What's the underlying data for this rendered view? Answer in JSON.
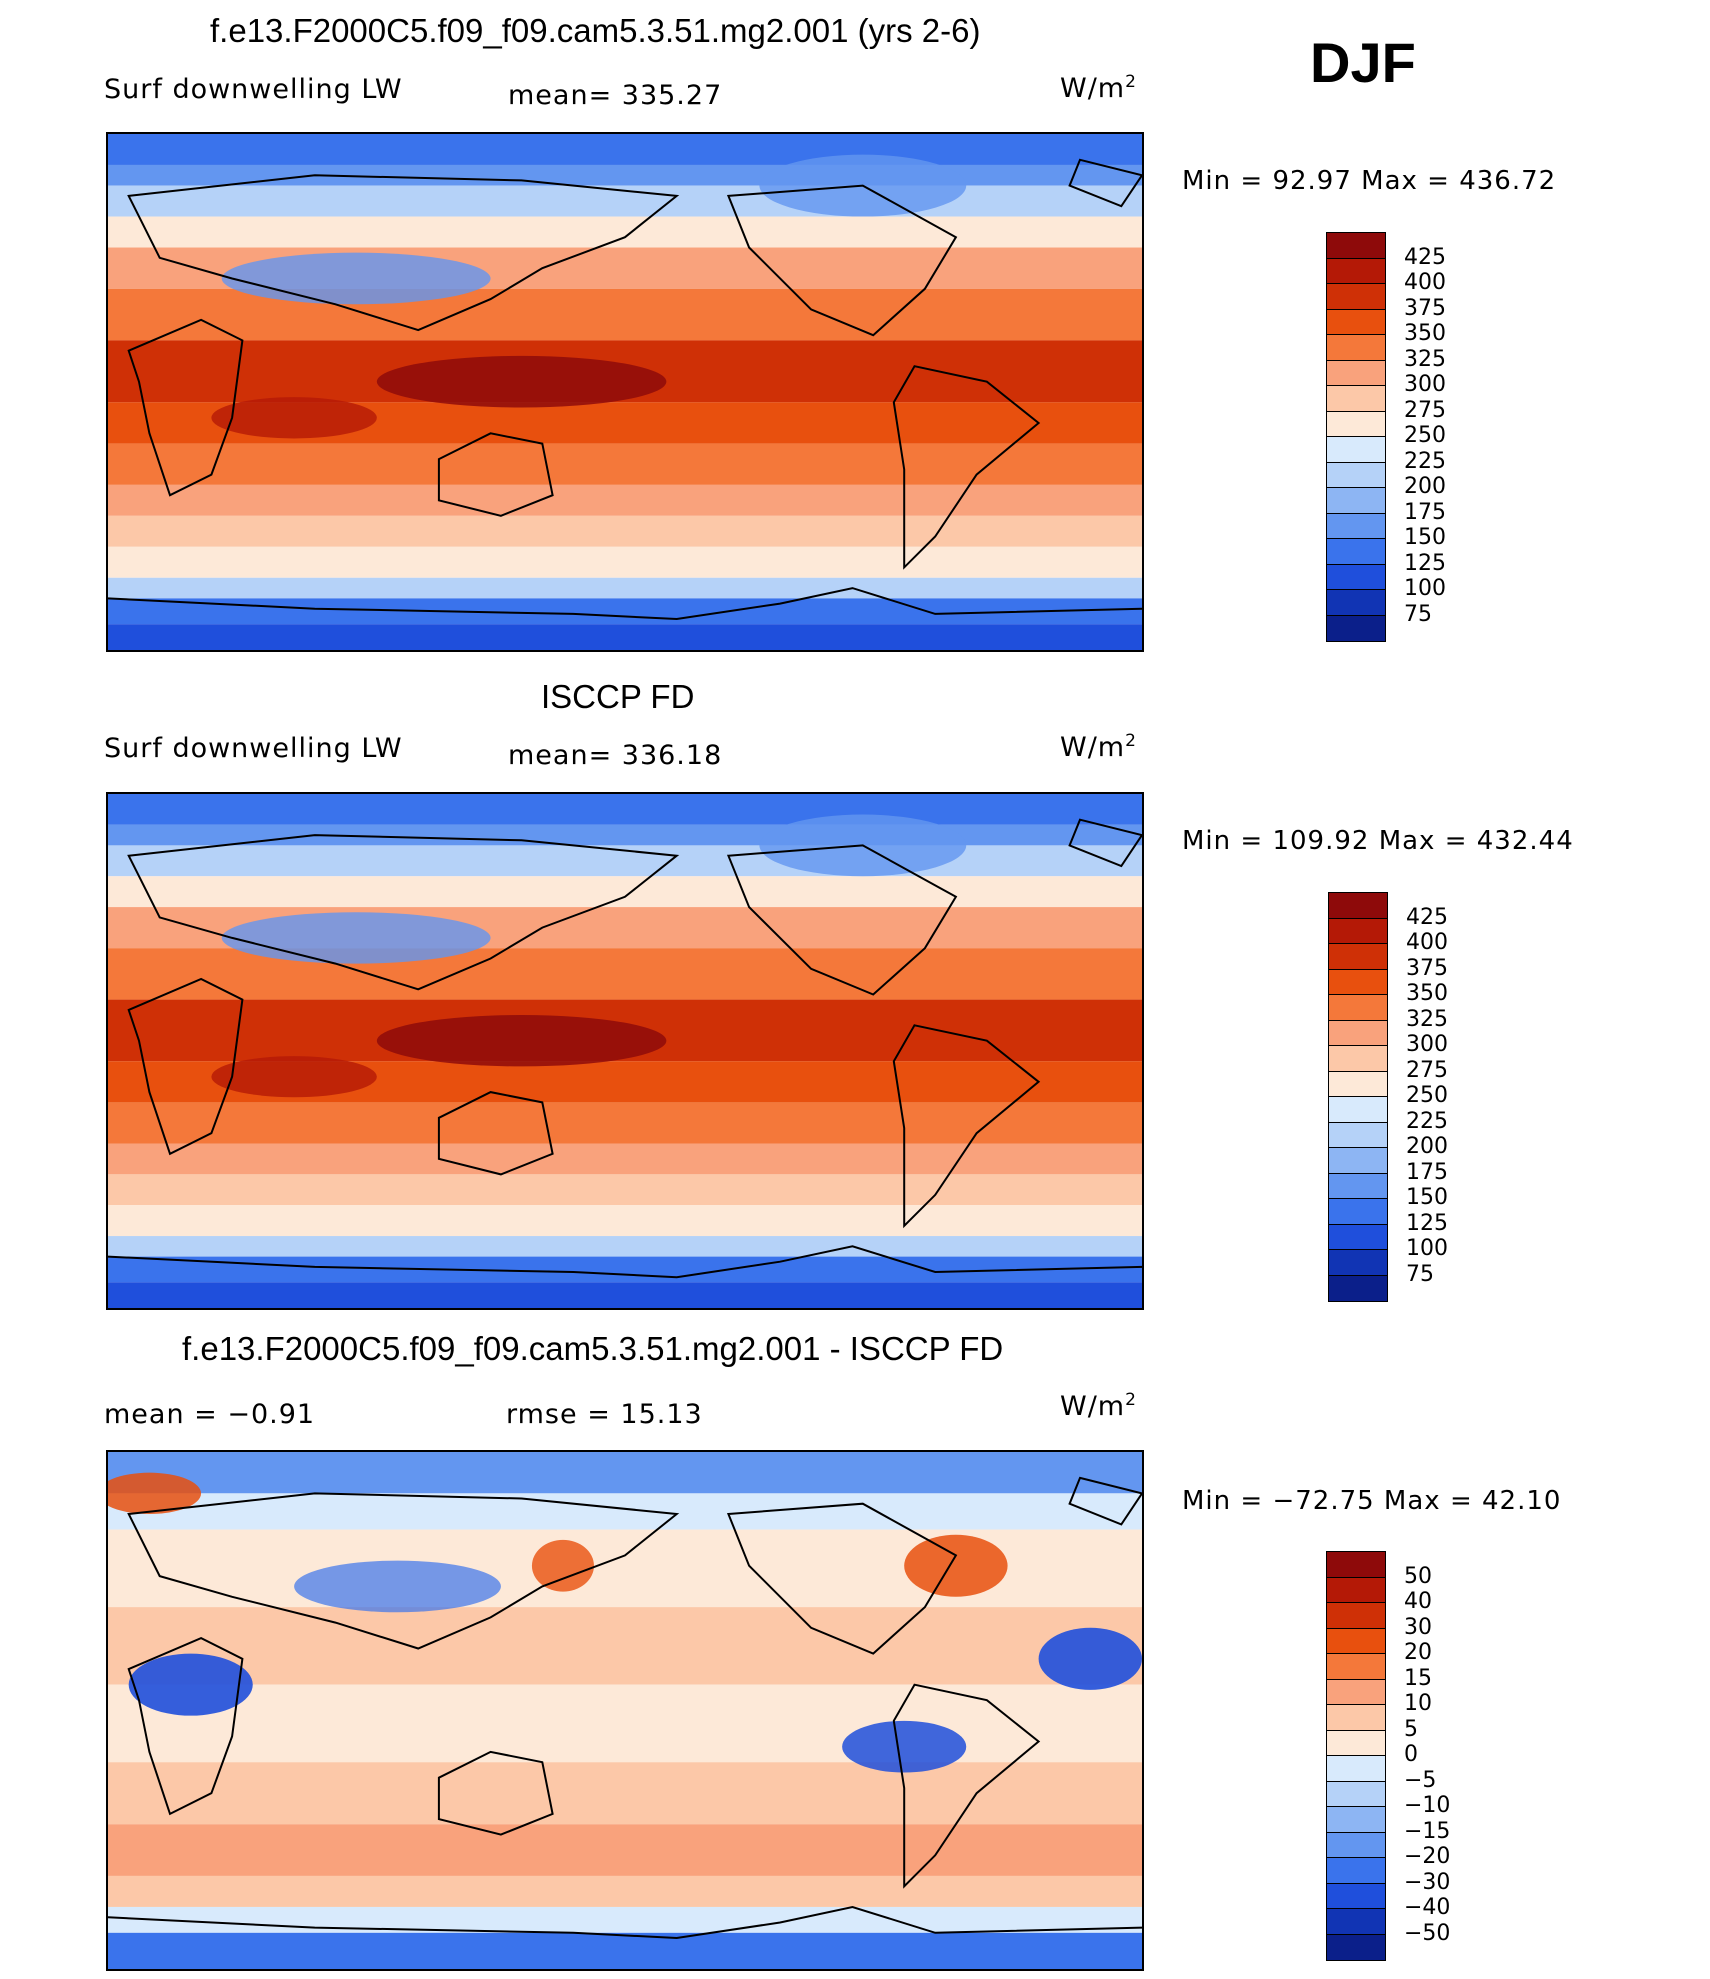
{
  "season": "DJF",
  "panels": [
    {
      "title": "f.e13.F2000C5.f09_f09.cam5.3.51.mg2.001 (yrs 2-6)",
      "left_label": "Surf  downwelling  LW",
      "mid_label": "mean=  335.27",
      "units": "W/m²",
      "minmax": "Min  =    92.97  Max  =  436.72",
      "scale": "abs",
      "colorbar": {
        "labels": [
          "425",
          "400",
          "375",
          "350",
          "325",
          "300",
          "275",
          "250",
          "225",
          "200",
          "175",
          "150",
          "125",
          "100",
          "75"
        ],
        "colors": [
          "#8e0a0a",
          "#b41906",
          "#cf3006",
          "#e8500e",
          "#f4783a",
          "#f9a27c",
          "#fcc8a8",
          "#fde9d8",
          "#d8eafc",
          "#b5d2f8",
          "#8db5f3",
          "#6396f0",
          "#3a73ec",
          "#1f4fdc",
          "#1134b4",
          "#0b1f8a"
        ]
      }
    },
    {
      "title": "ISCCP FD",
      "left_label": "Surf  downwelling  LW",
      "mid_label": "mean=  336.18",
      "units": "W/m²",
      "minmax": "Min  =  109.92  Max  =  432.44",
      "scale": "abs",
      "colorbar": {
        "labels": [
          "425",
          "400",
          "375",
          "350",
          "325",
          "300",
          "275",
          "250",
          "225",
          "200",
          "175",
          "150",
          "125",
          "100",
          "75"
        ],
        "colors": [
          "#8e0a0a",
          "#b41906",
          "#cf3006",
          "#e8500e",
          "#f4783a",
          "#f9a27c",
          "#fcc8a8",
          "#fde9d8",
          "#d8eafc",
          "#b5d2f8",
          "#8db5f3",
          "#6396f0",
          "#3a73ec",
          "#1f4fdc",
          "#1134b4",
          "#0b1f8a"
        ]
      }
    },
    {
      "title": "f.e13.F2000C5.f09_f09.cam5.3.51.mg2.001 - ISCCP FD",
      "left_label": "mean  =    −0.91",
      "mid_label": "rmse  =    15.13",
      "units": "W/m²",
      "minmax": "Min  = −72.75  Max  =    42.10",
      "scale": "diff",
      "colorbar": {
        "labels": [
          "50",
          "40",
          "30",
          "20",
          "15",
          "10",
          "5",
          "0",
          "−5",
          "−10",
          "−15",
          "−20",
          "−30",
          "−40",
          "−50"
        ],
        "colors": [
          "#8e0a0a",
          "#b41906",
          "#cf3006",
          "#e8500e",
          "#f4783a",
          "#f9a27c",
          "#fcc8a8",
          "#fde9d8",
          "#d8eafc",
          "#b5d2f8",
          "#8db5f3",
          "#6396f0",
          "#3a73ec",
          "#1f4fdc",
          "#1134b4",
          "#0b1f8a"
        ]
      }
    }
  ]
}
